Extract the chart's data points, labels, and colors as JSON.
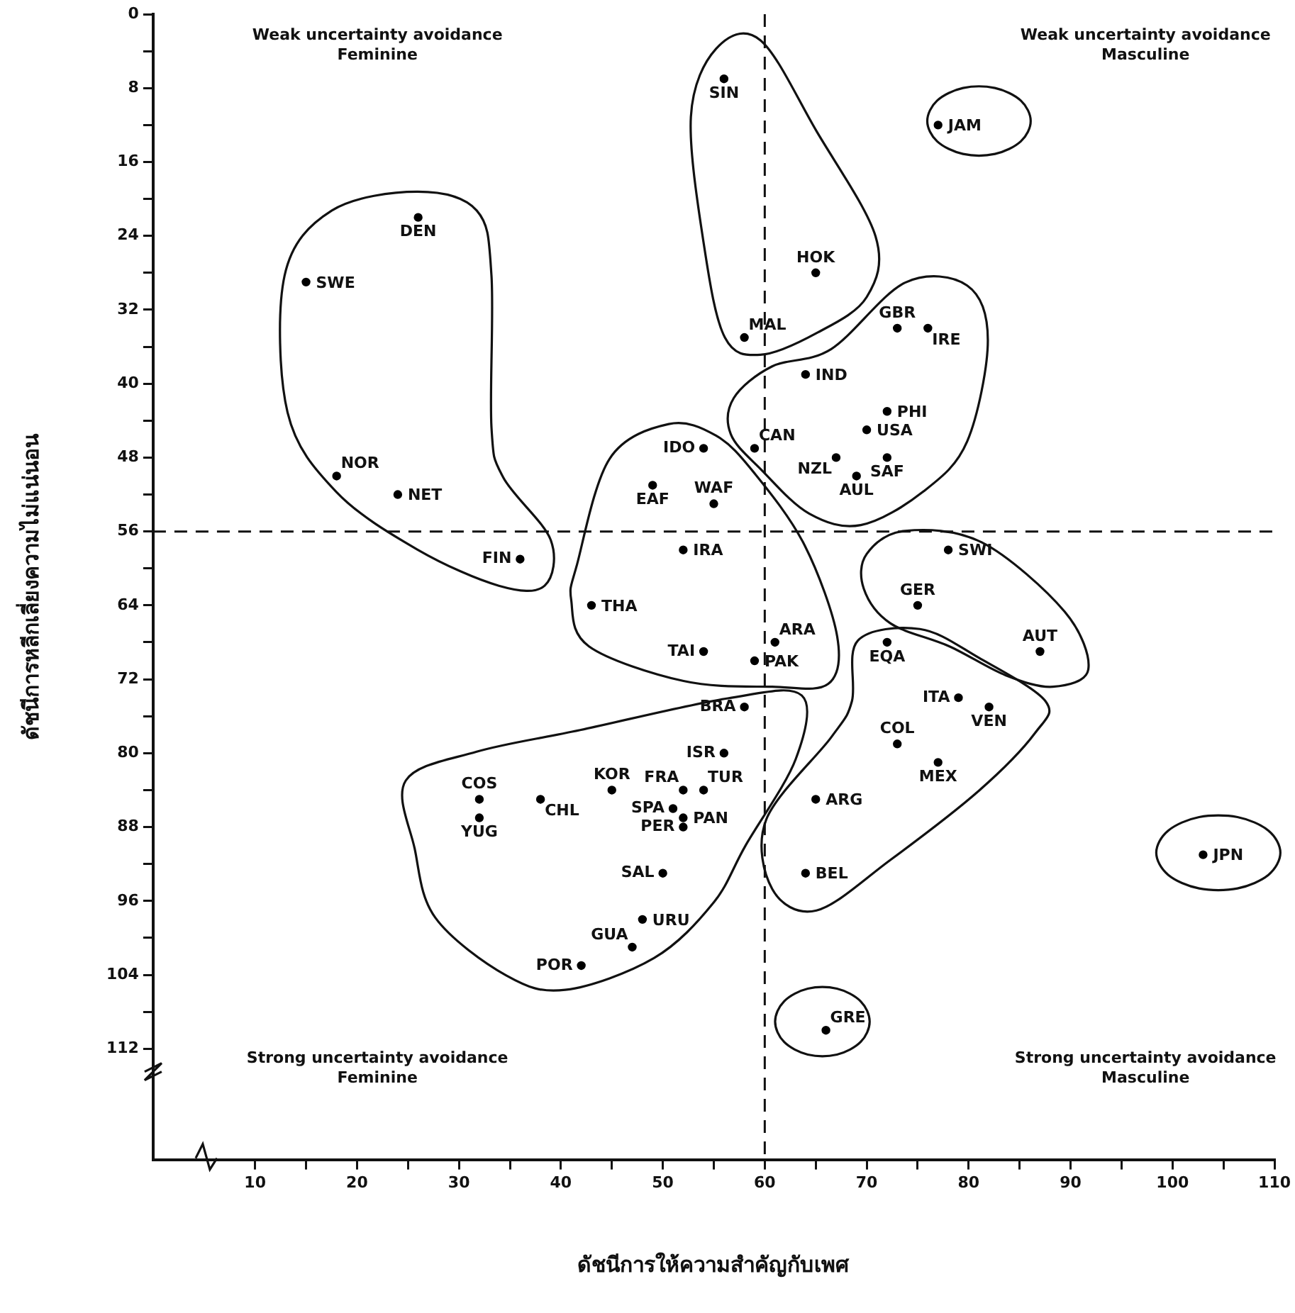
{
  "chart_data": {
    "type": "scatter",
    "xlabel": "ดัชนีการให้ความสำคัญกับเพศ",
    "ylabel": "ดัชนีการหลีกเลี่ยงความไม่แน่นอน",
    "annotations": [
      "Weak uncertainty avoidance\nFeminine",
      "Weak uncertainty avoidance\nMasculine",
      "Strong uncertainty avoidance\nFeminine",
      "Strong uncertainty avoidance\nMasculine"
    ],
    "xlim": [
      0,
      110
    ],
    "xticks": [
      10,
      {
        "value": 15,
        "label": null
      },
      20,
      {
        "value": 25,
        "label": null
      },
      30,
      {
        "value": 35,
        "label": null
      },
      40,
      {
        "value": 45,
        "label": null
      },
      50,
      {
        "value": 55,
        "label": null
      },
      60,
      {
        "value": 65,
        "label": null
      },
      70,
      {
        "value": 75,
        "label": null
      },
      80,
      {
        "value": 85,
        "label": null
      },
      90,
      {
        "value": 95,
        "label": null
      },
      100,
      {
        "value": 105,
        "label": null
      },
      110
    ],
    "ylim": [
      124,
      0
    ],
    "yticks": [
      0,
      {
        "value": 4,
        "label": null
      },
      8,
      {
        "value": 12,
        "label": null
      },
      16,
      {
        "value": 20,
        "label": null
      },
      24,
      {
        "value": 28,
        "label": null
      },
      32,
      {
        "value": 36,
        "label": null
      },
      40,
      {
        "value": 44,
        "label": null
      },
      48,
      {
        "value": 52,
        "label": null
      },
      56,
      {
        "value": 60,
        "label": null
      },
      64,
      {
        "value": 68,
        "label": null
      },
      72,
      {
        "value": 76,
        "label": null
      },
      80,
      {
        "value": 84,
        "label": null
      },
      88,
      {
        "value": 92,
        "label": null
      },
      96,
      {
        "value": 100,
        "label": null
      },
      104,
      {
        "value": 108,
        "label": null
      },
      112
    ],
    "grid": false,
    "legend": false,
    "marker": "circle",
    "ref_lines": [
      {
        "axis": "x",
        "value": 60,
        "line_style": "dashed"
      },
      {
        "axis": "y",
        "value": 56,
        "line_style": "dashed"
      }
    ],
    "series": [
      {
        "name": "DEN",
        "color": "#000000",
        "x": [
          26
        ],
        "values": [
          22
        ]
      },
      {
        "name": "SWE",
        "color": "#000000",
        "x": [
          15
        ],
        "values": [
          29
        ]
      },
      {
        "name": "NOR",
        "color": "#000000",
        "x": [
          18
        ],
        "values": [
          50
        ]
      },
      {
        "name": "NET",
        "color": "#000000",
        "x": [
          24
        ],
        "values": [
          52
        ]
      },
      {
        "name": "FIN",
        "color": "#000000",
        "x": [
          36
        ],
        "values": [
          59
        ]
      },
      {
        "name": "IDO",
        "color": "#000000",
        "x": [
          54
        ],
        "values": [
          47
        ]
      },
      {
        "name": "EAF",
        "color": "#000000",
        "x": [
          49
        ],
        "values": [
          51
        ]
      },
      {
        "name": "WAF",
        "color": "#000000",
        "x": [
          55
        ],
        "values": [
          53
        ]
      },
      {
        "name": "IRA",
        "color": "#000000",
        "x": [
          52
        ],
        "values": [
          58
        ]
      },
      {
        "name": "THA",
        "color": "#000000",
        "x": [
          43
        ],
        "values": [
          64
        ]
      },
      {
        "name": "TAI",
        "color": "#000000",
        "x": [
          54
        ],
        "values": [
          69
        ]
      },
      {
        "name": "SIN",
        "color": "#000000",
        "x": [
          56
        ],
        "values": [
          7
        ]
      },
      {
        "name": "JAM",
        "color": "#000000",
        "x": [
          77
        ],
        "values": [
          12
        ]
      },
      {
        "name": "HOK",
        "color": "#000000",
        "x": [
          65
        ],
        "values": [
          28
        ]
      },
      {
        "name": "MAL",
        "color": "#000000",
        "x": [
          58
        ],
        "values": [
          35
        ]
      },
      {
        "name": "GBR",
        "color": "#000000",
        "x": [
          73
        ],
        "values": [
          34
        ]
      },
      {
        "name": "IRE",
        "color": "#000000",
        "x": [
          76
        ],
        "values": [
          34
        ]
      },
      {
        "name": "IND",
        "color": "#000000",
        "x": [
          64
        ],
        "values": [
          39
        ]
      },
      {
        "name": "PHI",
        "color": "#000000",
        "x": [
          72
        ],
        "values": [
          43
        ]
      },
      {
        "name": "USA",
        "color": "#000000",
        "x": [
          70
        ],
        "values": [
          45
        ]
      },
      {
        "name": "CAN",
        "color": "#000000",
        "x": [
          59
        ],
        "values": [
          47
        ]
      },
      {
        "name": "NZL",
        "color": "#000000",
        "x": [
          67
        ],
        "values": [
          48
        ]
      },
      {
        "name": "SAF",
        "color": "#000000",
        "x": [
          72
        ],
        "values": [
          48
        ]
      },
      {
        "name": "AUL",
        "color": "#000000",
        "x": [
          69
        ],
        "values": [
          50
        ]
      },
      {
        "name": "SWI",
        "color": "#000000",
        "x": [
          78
        ],
        "values": [
          58
        ]
      },
      {
        "name": "GER",
        "color": "#000000",
        "x": [
          75
        ],
        "values": [
          64
        ]
      },
      {
        "name": "AUT",
        "color": "#000000",
        "x": [
          87
        ],
        "values": [
          69
        ]
      },
      {
        "name": "ARA",
        "color": "#000000",
        "x": [
          61
        ],
        "values": [
          68
        ]
      },
      {
        "name": "PAK",
        "color": "#000000",
        "x": [
          59
        ],
        "values": [
          70
        ]
      },
      {
        "name": "EQA",
        "color": "#000000",
        "x": [
          72
        ],
        "values": [
          68
        ]
      },
      {
        "name": "ITA",
        "color": "#000000",
        "x": [
          79
        ],
        "values": [
          74
        ]
      },
      {
        "name": "VEN",
        "color": "#000000",
        "x": [
          82
        ],
        "values": [
          75
        ]
      },
      {
        "name": "COL",
        "color": "#000000",
        "x": [
          73
        ],
        "values": [
          79
        ]
      },
      {
        "name": "MEX",
        "color": "#000000",
        "x": [
          77
        ],
        "values": [
          81
        ]
      },
      {
        "name": "ARG",
        "color": "#000000",
        "x": [
          65
        ],
        "values": [
          85
        ]
      },
      {
        "name": "BEL",
        "color": "#000000",
        "x": [
          64
        ],
        "values": [
          93
        ]
      },
      {
        "name": "JPN",
        "color": "#000000",
        "x": [
          103
        ],
        "values": [
          91
        ]
      },
      {
        "name": "GRE",
        "color": "#000000",
        "x": [
          66
        ],
        "values": [
          110
        ]
      },
      {
        "name": "BRA",
        "color": "#000000",
        "x": [
          58
        ],
        "values": [
          75
        ]
      },
      {
        "name": "ISR",
        "color": "#000000",
        "x": [
          56
        ],
        "values": [
          80
        ]
      },
      {
        "name": "KOR",
        "color": "#000000",
        "x": [
          45
        ],
        "values": [
          84
        ]
      },
      {
        "name": "FRA",
        "color": "#000000",
        "x": [
          52
        ],
        "values": [
          84
        ]
      },
      {
        "name": "TUR",
        "color": "#000000",
        "x": [
          54
        ],
        "values": [
          84
        ]
      },
      {
        "name": "SPA",
        "color": "#000000",
        "x": [
          51
        ],
        "values": [
          86
        ]
      },
      {
        "name": "PER",
        "color": "#000000",
        "x": [
          52
        ],
        "values": [
          88
        ]
      },
      {
        "name": "PAN",
        "color": "#000000",
        "x": [
          52
        ],
        "values": [
          87
        ]
      },
      {
        "name": "COS",
        "color": "#000000",
        "x": [
          32
        ],
        "values": [
          85
        ]
      },
      {
        "name": "YUG",
        "color": "#000000",
        "x": [
          32
        ],
        "values": [
          87
        ]
      },
      {
        "name": "CHL",
        "color": "#000000",
        "x": [
          38
        ],
        "values": [
          85
        ]
      },
      {
        "name": "SAL",
        "color": "#000000",
        "x": [
          50
        ],
        "values": [
          93
        ]
      },
      {
        "name": "URU",
        "color": "#000000",
        "x": [
          48
        ],
        "values": [
          98
        ]
      },
      {
        "name": "GUA",
        "color": "#000000",
        "x": [
          47
        ],
        "values": [
          101
        ]
      },
      {
        "name": "POR",
        "color": "#000000",
        "x": [
          42
        ],
        "values": [
          103
        ]
      }
    ]
  }
}
